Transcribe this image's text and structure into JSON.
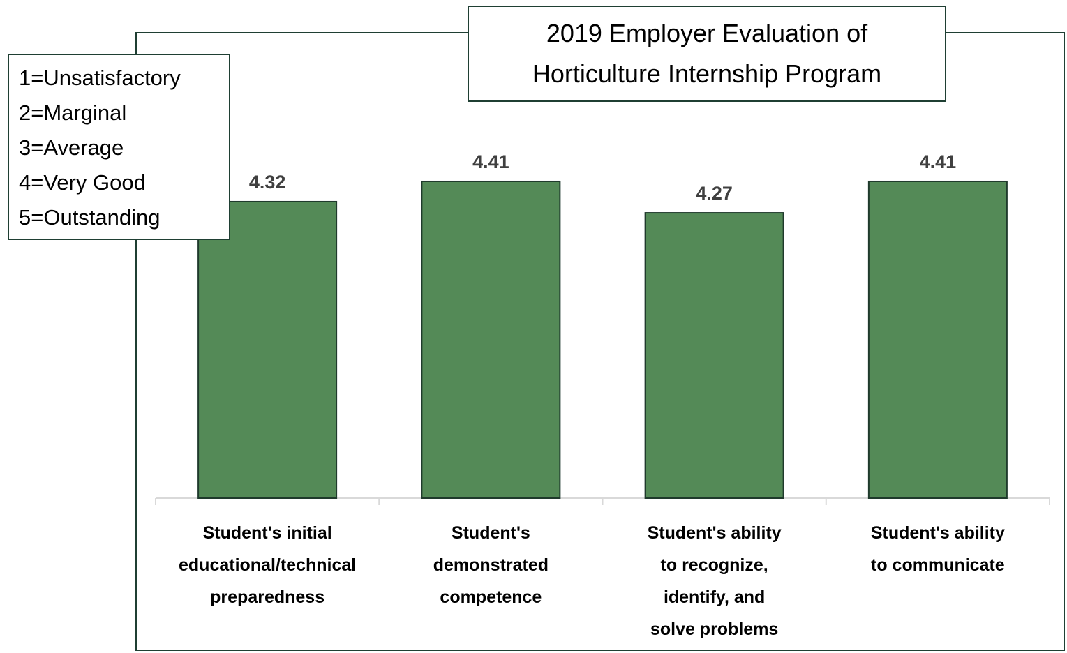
{
  "chart_data": {
    "type": "bar",
    "title_lines": [
      "2019 Employer Evaluation of",
      "Horticulture Internship Program"
    ],
    "categories": [
      [
        "Student's initial",
        "educational/technical",
        "preparedness"
      ],
      [
        "Student's",
        "demonstrated",
        "competence"
      ],
      [
        "Student's ability",
        "to recognize,",
        "identify, and",
        "solve problems"
      ],
      [
        "Student's ability",
        "to communicate"
      ]
    ],
    "values": [
      4.32,
      4.41,
      4.27,
      4.41
    ],
    "value_labels": [
      "4.32",
      "4.41",
      "4.27",
      "4.41"
    ],
    "legend_box": [
      "1=Unsatisfactory",
      "2=Marginal",
      "3=Average",
      "4=Very Good",
      "5=Outstanding"
    ],
    "ylim": [
      3,
      4.8
    ],
    "y_axis_visible": false,
    "grid": false,
    "xlabel": "",
    "ylabel": "",
    "colors": {
      "bar": "#548a57",
      "bar_border": "#1f3a2c",
      "frame": "#1f3f33",
      "value_label": "#404040",
      "axis": "#d9d9d9"
    }
  }
}
